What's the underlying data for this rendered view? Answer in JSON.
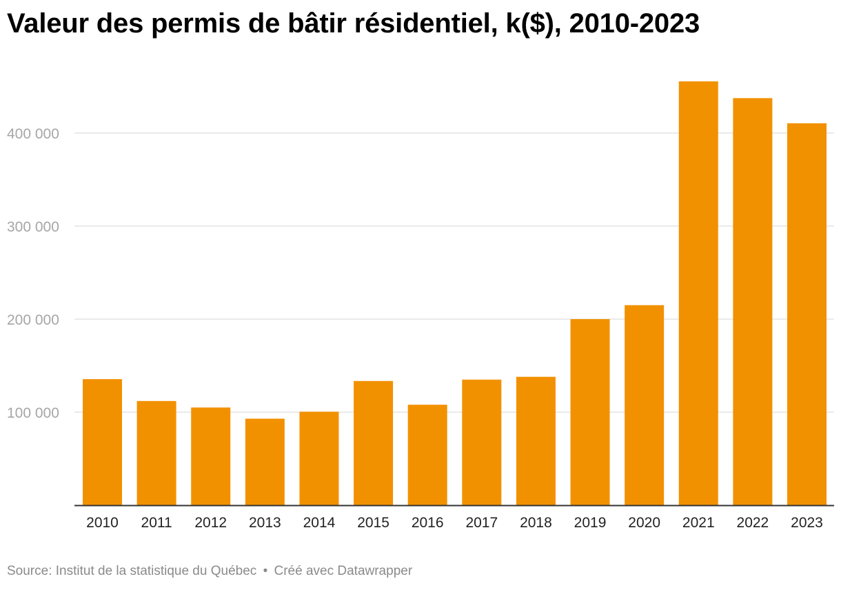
{
  "title": "Valeur des permis de bâtir résidentiel, k($), 2010-2023",
  "footer": {
    "source": "Source: Institut de la statistique du Québec",
    "separator": "•",
    "credit": "Créé avec Datawrapper"
  },
  "chart_data": {
    "type": "bar",
    "title": "Valeur des permis de bâtir résidentiel, k($), 2010-2023",
    "xlabel": "",
    "ylabel": "",
    "categories": [
      "2010",
      "2011",
      "2012",
      "2013",
      "2014",
      "2015",
      "2016",
      "2017",
      "2018",
      "2019",
      "2020",
      "2021",
      "2022",
      "2023"
    ],
    "values": [
      135500,
      112000,
      105000,
      93000,
      100500,
      133500,
      108000,
      135000,
      138000,
      200000,
      215000,
      455500,
      437500,
      410500
    ],
    "ylim": [
      0,
      460000
    ],
    "yticks": [
      100000,
      200000,
      300000,
      400000
    ],
    "ytick_labels": [
      "100 000",
      "200 000",
      "300 000",
      "400 000"
    ],
    "grid": true,
    "legend": "none",
    "colors": {
      "bar": "#f29100",
      "grid": "#e3e3e3",
      "axis": "#333333",
      "ytick_text": "#a6a6a6",
      "xtick_text": "#222222"
    }
  }
}
